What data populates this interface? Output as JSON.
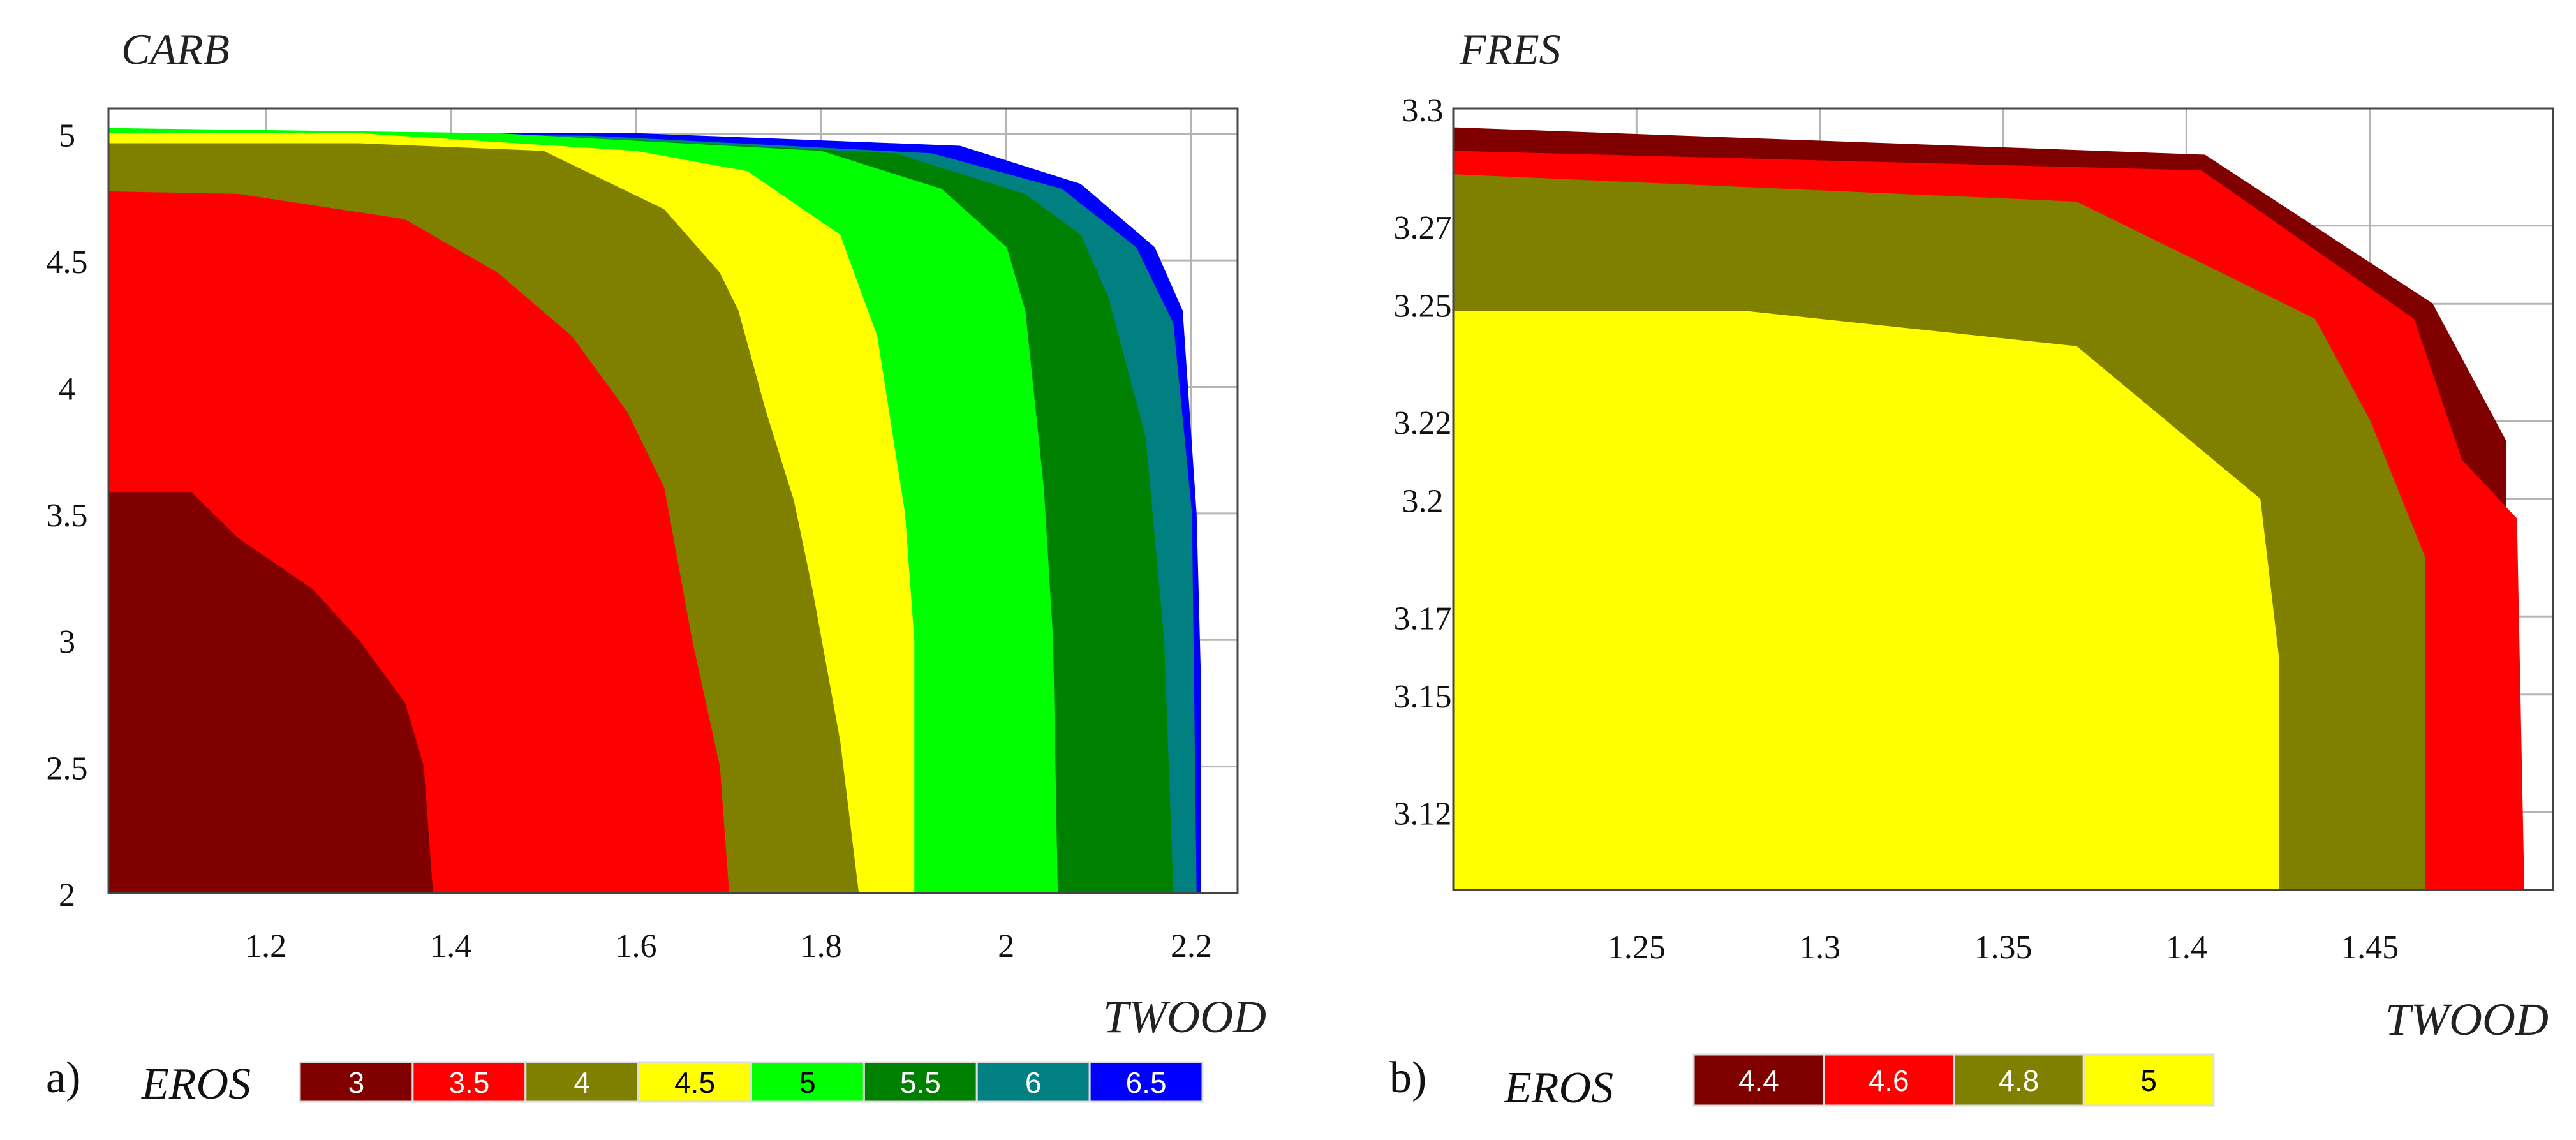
{
  "chart_data": [
    {
      "type": "contour",
      "panel_label": "a)",
      "ylabel": "CARB",
      "xlabel": "TWOOD",
      "x_ticks": [
        1.2,
        1.4,
        1.6,
        1.8,
        2,
        2.2
      ],
      "x_tick_labels": [
        "1.2",
        "1.4",
        "1.6",
        "1.8",
        "2",
        "2.2"
      ],
      "y_ticks": [
        2,
        2.5,
        3,
        3.5,
        4,
        4.5,
        5
      ],
      "y_tick_labels": [
        "2",
        "2.5",
        "3",
        "3.5",
        "4",
        "4.5",
        "5"
      ],
      "xlim": [
        1.03,
        2.25
      ],
      "ylim": [
        2.0,
        5.1
      ],
      "grid": true,
      "legend_title": "EROS",
      "levels": [
        {
          "label": "3",
          "color": "#800000",
          "text_color": "#ffffff"
        },
        {
          "label": "3.5",
          "color": "#ff0000",
          "text_color": "#ffffff"
        },
        {
          "label": "4",
          "color": "#808000",
          "text_color": "#ffffff"
        },
        {
          "label": "4.5",
          "color": "#ffff00",
          "text_color": "#000000"
        },
        {
          "label": "5",
          "color": "#00ff00",
          "text_color": "#000000"
        },
        {
          "label": "5.5",
          "color": "#008000",
          "text_color": "#ffffff"
        },
        {
          "label": "6",
          "color": "#008080",
          "text_color": "#ffffff"
        },
        {
          "label": "6.5",
          "color": "#0000ff",
          "text_color": "#ffffff"
        }
      ],
      "region_boundaries": [
        {
          "level_index": 7,
          "color": "#0000ff",
          "points": [
            [
              1.03,
              5.0
            ],
            [
              1.6,
              5.0
            ],
            [
              1.95,
              4.95
            ],
            [
              2.08,
              4.8
            ],
            [
              2.16,
              4.55
            ],
            [
              2.19,
              4.3
            ],
            [
              2.205,
              3.5
            ],
            [
              2.21,
              2.8
            ],
            [
              2.21,
              2.0
            ]
          ]
        },
        {
          "level_index": 6,
          "color": "#008080",
          "points": [
            [
              1.03,
              5.0
            ],
            [
              1.55,
              4.99
            ],
            [
              1.92,
              4.92
            ],
            [
              2.06,
              4.78
            ],
            [
              2.14,
              4.55
            ],
            [
              2.18,
              4.25
            ],
            [
              2.2,
              3.5
            ],
            [
              2.205,
              2.0
            ]
          ]
        },
        {
          "level_index": 5,
          "color": "#008000",
          "points": [
            [
              1.03,
              5.0
            ],
            [
              1.5,
              4.99
            ],
            [
              1.88,
              4.92
            ],
            [
              2.02,
              4.76
            ],
            [
              2.08,
              4.6
            ],
            [
              2.11,
              4.35
            ],
            [
              2.15,
              3.8
            ],
            [
              2.17,
              3.0
            ],
            [
              2.18,
              2.0
            ]
          ]
        },
        {
          "level_index": 4,
          "color": "#00ff00",
          "points": [
            [
              1.03,
              5.02
            ],
            [
              1.45,
              5.0
            ],
            [
              1.8,
              4.93
            ],
            [
              1.93,
              4.78
            ],
            [
              2.0,
              4.55
            ],
            [
              2.02,
              4.3
            ],
            [
              2.04,
              3.6
            ],
            [
              2.05,
              3.0
            ],
            [
              2.055,
              2.0
            ]
          ]
        },
        {
          "level_index": 3,
          "color": "#ffff00",
          "points": [
            [
              1.03,
              5.0
            ],
            [
              1.3,
              5.0
            ],
            [
              1.6,
              4.93
            ],
            [
              1.72,
              4.85
            ],
            [
              1.82,
              4.6
            ],
            [
              1.86,
              4.2
            ],
            [
              1.89,
              3.5
            ],
            [
              1.9,
              3.0
            ],
            [
              1.9,
              2.0
            ]
          ]
        },
        {
          "level_index": 2,
          "color": "#808000",
          "points": [
            [
              1.03,
              4.96
            ],
            [
              1.3,
              4.96
            ],
            [
              1.5,
              4.93
            ],
            [
              1.63,
              4.7
            ],
            [
              1.69,
              4.45
            ],
            [
              1.71,
              4.3
            ],
            [
              1.74,
              3.9
            ],
            [
              1.77,
              3.55
            ],
            [
              1.79,
              3.2
            ],
            [
              1.82,
              2.6
            ],
            [
              1.84,
              2.0
            ]
          ]
        },
        {
          "level_index": 1,
          "color": "#ff0000",
          "points": [
            [
              1.03,
              4.77
            ],
            [
              1.17,
              4.76
            ],
            [
              1.35,
              4.66
            ],
            [
              1.45,
              4.45
            ],
            [
              1.53,
              4.2
            ],
            [
              1.59,
              3.9
            ],
            [
              1.63,
              3.6
            ],
            [
              1.66,
              3.0
            ],
            [
              1.69,
              2.5
            ],
            [
              1.7,
              2.0
            ]
          ]
        },
        {
          "level_index": 0,
          "color": "#800000",
          "points": [
            [
              1.03,
              3.58
            ],
            [
              1.12,
              3.58
            ],
            [
              1.17,
              3.4
            ],
            [
              1.25,
              3.2
            ],
            [
              1.3,
              3.0
            ],
            [
              1.35,
              2.75
            ],
            [
              1.37,
              2.5
            ],
            [
              1.38,
              2.0
            ]
          ]
        }
      ]
    },
    {
      "type": "contour",
      "panel_label": "b)",
      "ylabel": "FRES",
      "xlabel": "TWOOD",
      "x_ticks": [
        1.25,
        1.3,
        1.35,
        1.4,
        1.45
      ],
      "x_tick_labels": [
        "1.25",
        "1.3",
        "1.35",
        "1.4",
        "1.45"
      ],
      "y_ticks": [
        3.12,
        3.15,
        3.17,
        3.2,
        3.22,
        3.25,
        3.27,
        3.3
      ],
      "y_tick_labels": [
        "3.12",
        "3.15",
        "3.17",
        "3.2",
        "3.22",
        "3.25",
        "3.27",
        "3.3"
      ],
      "xlim": [
        1.2,
        1.5
      ],
      "ylim": [
        3.1,
        3.3
      ],
      "grid": true,
      "legend_title": "EROS",
      "levels": [
        {
          "label": "4.4",
          "color": "#800000",
          "text_color": "#ffffff"
        },
        {
          "label": "4.6",
          "color": "#ff0000",
          "text_color": "#ffffff"
        },
        {
          "label": "4.8",
          "color": "#808000",
          "text_color": "#ffffff"
        },
        {
          "label": "5",
          "color": "#ffff00",
          "text_color": "#000000"
        }
      ],
      "region_boundaries": [
        {
          "level_index": 0,
          "color": "#800000",
          "points": [
            [
              1.2,
              3.295
            ],
            [
              1.405,
              3.288
            ],
            [
              1.467,
              3.25
            ],
            [
              1.487,
              3.215
            ],
            [
              1.487,
              3.1
            ]
          ]
        },
        {
          "level_index": 1,
          "color": "#ff0000",
          "points": [
            [
              1.2,
              3.289
            ],
            [
              1.404,
              3.284
            ],
            [
              1.462,
              3.246
            ],
            [
              1.475,
              3.21
            ],
            [
              1.49,
              3.195
            ],
            [
              1.492,
              3.1
            ]
          ]
        },
        {
          "level_index": 2,
          "color": "#808000",
          "points": [
            [
              1.2,
              3.283
            ],
            [
              1.37,
              3.276
            ],
            [
              1.435,
              3.246
            ],
            [
              1.45,
              3.22
            ],
            [
              1.465,
              3.185
            ],
            [
              1.465,
              3.1
            ]
          ]
        },
        {
          "level_index": 3,
          "color": "#ffff00",
          "points": [
            [
              1.2,
              3.248
            ],
            [
              1.28,
              3.248
            ],
            [
              1.37,
              3.239
            ],
            [
              1.42,
              3.2
            ],
            [
              1.425,
              3.16
            ],
            [
              1.425,
              3.1
            ]
          ]
        }
      ]
    }
  ]
}
